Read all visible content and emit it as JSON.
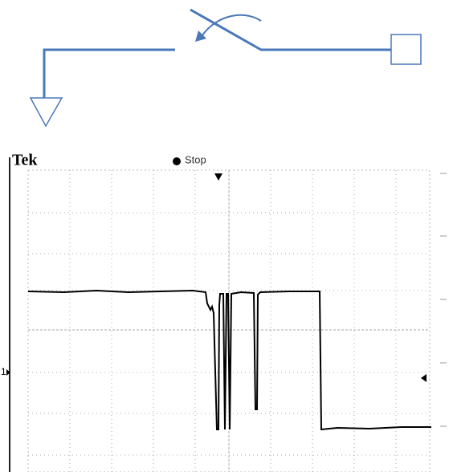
{
  "scope": {
    "brand": "Tek",
    "status": "Stop",
    "channel_marker": "1"
  }
}
